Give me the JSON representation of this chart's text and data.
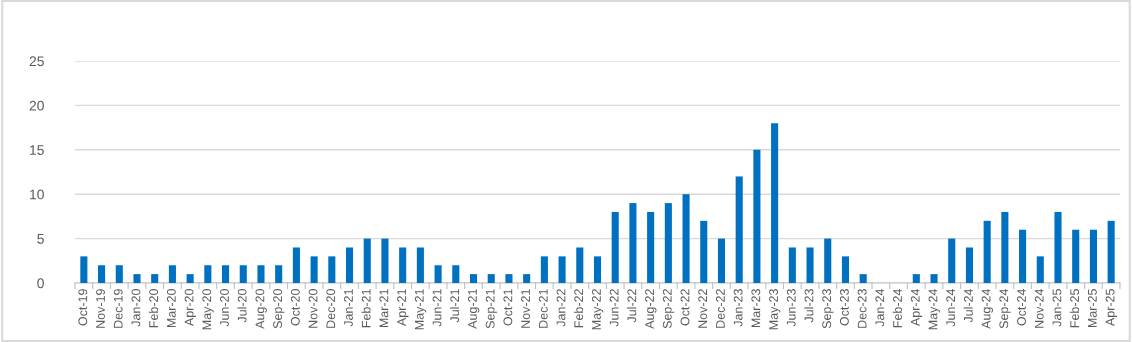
{
  "chart_data": {
    "type": "bar",
    "categories": [
      "Oct-19",
      "Nov-19",
      "Dec-19",
      "Jan-20",
      "Feb-20",
      "Mar-20",
      "Apr-20",
      "May-20",
      "Jun-20",
      "Jul-20",
      "Aug-20",
      "Sep-20",
      "Oct-20",
      "Nov-20",
      "Dec-20",
      "Jan-21",
      "Feb-21",
      "Mar-21",
      "Apr-21",
      "May-21",
      "Jun-21",
      "Jul-21",
      "Aug-21",
      "Sep-21",
      "Oct-21",
      "Nov-21",
      "Dec-21",
      "Jan-22",
      "Feb-22",
      "May-22",
      "Jun-22",
      "Jul-22",
      "Aug-22",
      "Sep-22",
      "Oct-22",
      "Nov-22",
      "Dec-22",
      "Jan-23",
      "Mar-23",
      "May-23",
      "Jun-23",
      "Jul-23",
      "Sep-23",
      "Oct-23",
      "Dec-23",
      "Jan-24",
      "Feb-24",
      "Apr-24",
      "May-24",
      "Jun-24",
      "Jul-24",
      "Aug-24",
      "Sep-24",
      "Oct-24",
      "Nov-24",
      "Jan-25",
      "Feb-25",
      "Mar-25",
      "Apr-25"
    ],
    "values": [
      3,
      2,
      2,
      1,
      1,
      2,
      1,
      2,
      2,
      2,
      2,
      2,
      4,
      3,
      3,
      4,
      5,
      5,
      4,
      4,
      2,
      2,
      1,
      1,
      1,
      1,
      3,
      3,
      4,
      3,
      8,
      9,
      8,
      9,
      10,
      7,
      5,
      12,
      15,
      18,
      4,
      4,
      5,
      3,
      1,
      0,
      0,
      1,
      1,
      5,
      4,
      7,
      8,
      6,
      3,
      8,
      6,
      6,
      7
    ],
    "color": "#0070c0",
    "ylim": [
      0,
      25
    ],
    "yticks": [
      0,
      5,
      10,
      15,
      20,
      25
    ],
    "grid": "y"
  }
}
